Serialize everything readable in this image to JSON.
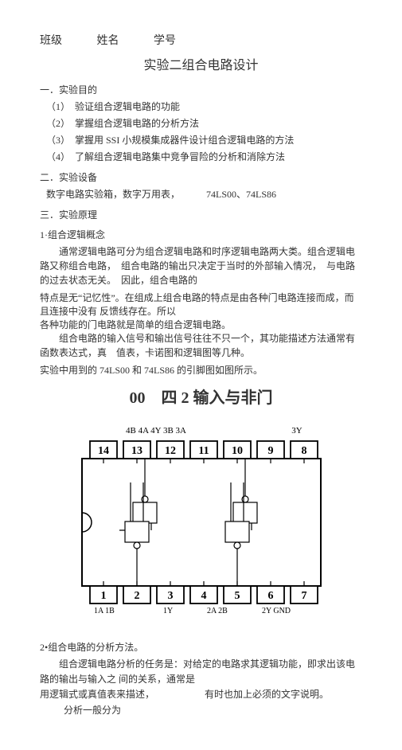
{
  "header": {
    "class_label": "班级",
    "name_label": "姓名",
    "id_label": "学号"
  },
  "title": "实验二组合电路设计",
  "sect1": {
    "head": "一．实验目的",
    "items": [
      "（1）　验证组合逻辑电路的功能",
      "（2）　掌握组合逻辑电路的分析方法",
      "（3）　掌握用 SSI 小规模集成器件设计组合逻辑电路的方法",
      "（4）　了解组合逻辑电路集中竞争冒险的分析和消除方法"
    ]
  },
  "sect2": {
    "head": "二．实验设备",
    "line": "数字电路实验箱，数字万用表，",
    "chips": "74LS00、74LS86"
  },
  "sect3": {
    "head": "三．实验原理"
  },
  "sub1": {
    "head": "1·组合逻辑概念",
    "p1": "通常逻辑电路可分为组合逻辑电路和时序逻辑电路两大类。组合逻辑电路又称组合电路，　组合电路的输出只决定于当时的外部输入情况，　与电路的过去状态无关。　因此，组合电路的",
    "p2a": "特点是无“记忆性”。在组成上组合电路的特点是由各种门电路连接而成，而且连接中没有 反馈线存在。所以",
    "p2b": "各种功能的门电路就是简单的组合逻辑电路。",
    "p3": "组合电路的输入信号和输出信号往往不只一个，其功能描述方法通常有函数表达式，真　值表，卡诺图和逻辑图等几种。",
    "p4": "实验中用到的 74LS00 和 74LS86 的引脚图如图所示。"
  },
  "chip": {
    "subtitle_a": "00",
    "subtitle_b": "四 2 输入与非门",
    "top_labels": [
      "4B 4A 4Y 3B 3A",
      "3Y"
    ],
    "top_pins": [
      "14",
      "13",
      "12",
      "11",
      "10",
      "9",
      "8"
    ],
    "bot_pins": [
      "1",
      "2",
      "3",
      "4",
      "5",
      "6",
      "7"
    ],
    "bot_labels": [
      "1A 1B",
      "1Y",
      "2A 2B",
      "2Y GND"
    ],
    "colors": {
      "stroke": "#000000",
      "fill": "#ffffff",
      "text": "#000000"
    }
  },
  "sub2": {
    "head": "2•组合电路的分析方法。",
    "p1a": "组合逻辑电路分析的任务是：对给定的电路求其逻辑功能，即求出该电路的输出与输入之 间的关系，通常是",
    "p1b": "用逻辑式或真值表来描述，",
    "p1c": "有时也加上必须的文字说明。",
    "p1d": "分析一般分为"
  }
}
